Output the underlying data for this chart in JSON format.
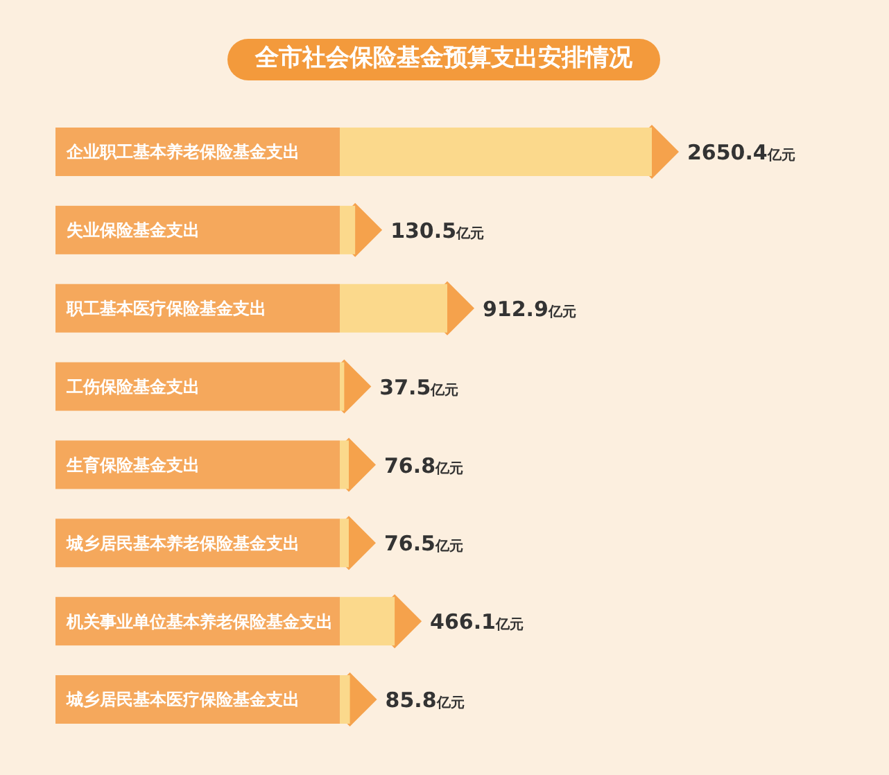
{
  "chart_data": {
    "type": "bar",
    "orientation": "horizontal",
    "title": "全市社会保险基金预算支出安排情况",
    "categories": [
      "企业职工基本养老保险基金支出",
      "失业保险基金支出",
      "职工基本医疗保险基金支出",
      "工伤保险基金支出",
      "生育保险基金支出",
      "城乡居民基本养老保险基金支出",
      "机关事业单位基本养老保险基金支出",
      "城乡居民基本医疗保险基金支出"
    ],
    "values": [
      2650.4,
      130.5,
      912.9,
      37.5,
      76.8,
      76.5,
      466.1,
      85.8
    ],
    "value_labels": [
      "2650.4亿元",
      "130.5亿元",
      "912.9亿元",
      "37.5亿元",
      "76.8亿元",
      "76.5亿元",
      "466.1亿元",
      "85.8亿元"
    ],
    "color": "#fbd98c",
    "relative": false
  }
}
